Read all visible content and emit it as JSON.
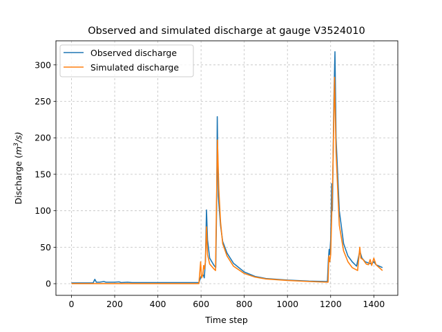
{
  "chart_data": {
    "type": "line",
    "title": "Observed and simulated discharge at gauge V3524010",
    "xlabel": "Time step",
    "ylabel_prefix": "Discharge (",
    "ylabel_unit": "m",
    "ylabel_sup": "3",
    "ylabel_suffix": "/s)",
    "xlim": [
      -72,
      1511
    ],
    "ylim": [
      -16,
      333
    ],
    "xticks": [
      0,
      200,
      400,
      600,
      800,
      1000,
      1200,
      1400
    ],
    "yticks": [
      0,
      50,
      100,
      150,
      200,
      250,
      300
    ],
    "grid": true,
    "legend_placement": "top-left",
    "series": [
      {
        "name": "Observed discharge",
        "color": "#1f77b4",
        "x": [
          0,
          100,
          108,
          115,
          130,
          150,
          160,
          200,
          220,
          230,
          260,
          280,
          300,
          590,
          600,
          610,
          615,
          620,
          625,
          630,
          640,
          660,
          668,
          672,
          675,
          680,
          690,
          700,
          720,
          750,
          800,
          850,
          900,
          1000,
          1100,
          1185,
          1190,
          1193,
          1196,
          1200,
          1205,
          1208,
          1215,
          1220,
          1225,
          1240,
          1260,
          1280,
          1300,
          1320,
          1335,
          1345,
          1360,
          1380,
          1390,
          1400,
          1410,
          1440
        ],
        "y": [
          1,
          1,
          6,
          2,
          2,
          3,
          2,
          2,
          2.5,
          1.5,
          2,
          1.5,
          1.5,
          1.5,
          10,
          12,
          8,
          30,
          101,
          60,
          35,
          25,
          22,
          100,
          229,
          120,
          80,
          58,
          42,
          28,
          16,
          10,
          7,
          5,
          3.5,
          3,
          35,
          47,
          40,
          60,
          137,
          100,
          250,
          318,
          200,
          100,
          55,
          38,
          30,
          24,
          45,
          35,
          30,
          28,
          27,
          30,
          26,
          22
        ]
      },
      {
        "name": "Simulated discharge",
        "color": "#ff7f0e",
        "x": [
          0,
          590,
          598,
          602,
          608,
          612,
          616,
          620,
          625,
          630,
          640,
          660,
          667,
          672,
          676,
          682,
          690,
          700,
          720,
          750,
          800,
          850,
          900,
          1000,
          1100,
          1188,
          1192,
          1196,
          1200,
          1210,
          1218,
          1225,
          1240,
          1260,
          1280,
          1300,
          1325,
          1335,
          1340,
          1350,
          1365,
          1375,
          1383,
          1390,
          1400,
          1410,
          1440
        ],
        "y": [
          0,
          0,
          30,
          8,
          12,
          25,
          20,
          30,
          78,
          40,
          27,
          20,
          18,
          120,
          197,
          130,
          85,
          55,
          38,
          24,
          14,
          9,
          6.5,
          4.5,
          3,
          2,
          38,
          30,
          40,
          150,
          283,
          180,
          80,
          45,
          30,
          22,
          18,
          50,
          35,
          33,
          27,
          26,
          33,
          25,
          35,
          26,
          18
        ]
      }
    ]
  }
}
